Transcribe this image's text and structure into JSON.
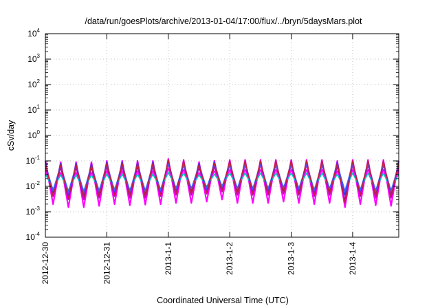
{
  "chart_data": {
    "type": "line",
    "title": "/data/run/goesPlots/archive/2013-01-04/17:00/flux/../bryn/5daysMars.plot",
    "xlabel": "Coordinated Universal Time (UTC)",
    "ylabel": "cSv/day",
    "yscale": "log",
    "ylim": [
      0.0001,
      10000
    ],
    "xlim": [
      "2012-12-30T00:00",
      "2013-01-04T18:00"
    ],
    "grid": true,
    "legend": "none",
    "y_ticks": [
      {
        "base": "10",
        "exp": "-4",
        "value": 0.0001
      },
      {
        "base": "10",
        "exp": "-3",
        "value": 0.001
      },
      {
        "base": "10",
        "exp": "-2",
        "value": 0.01
      },
      {
        "base": "10",
        "exp": "-1",
        "value": 0.1
      },
      {
        "base": "10",
        "exp": "0",
        "value": 1
      },
      {
        "base": "10",
        "exp": "1",
        "value": 10
      },
      {
        "base": "10",
        "exp": "2",
        "value": 100
      },
      {
        "base": "10",
        "exp": "3",
        "value": 1000
      },
      {
        "base": "10",
        "exp": "4",
        "value": 10000
      }
    ],
    "x_ticks": [
      {
        "label": "2012-12-30",
        "date": "2012-12-30T00:00"
      },
      {
        "label": "2012-12-31",
        "date": "2012-12-31T00:00"
      },
      {
        "label": "2013-1-1",
        "date": "2013-01-01T00:00"
      },
      {
        "label": "2013-1-2",
        "date": "2013-01-02T00:00"
      },
      {
        "label": "2013-1-3",
        "date": "2013-01-03T00:00"
      },
      {
        "label": "2013-1-4",
        "date": "2013-01-04T00:00"
      }
    ],
    "series_colors": [
      "#ff00ff",
      "#b000b0",
      "#ff00ff",
      "#00c0c0",
      "#2040ff",
      "#4060ff",
      "#c02040"
    ],
    "series": [
      {
        "x": [
          "2012-12-30T00:00",
          "2012-12-30T03:00",
          "2012-12-30T06:00",
          "2012-12-30T09:00",
          "2012-12-30T12:00",
          "2012-12-30T15:00",
          "2012-12-30T18:00",
          "2012-12-30T21:00",
          "2012-12-31T00:00",
          "2012-12-31T03:00",
          "2012-12-31T06:00",
          "2012-12-31T09:00",
          "2012-12-31T12:00",
          "2012-12-31T15:00",
          "2012-12-31T18:00",
          "2012-12-31T21:00",
          "2013-01-01T00:00",
          "2013-01-01T03:00",
          "2013-01-01T06:00",
          "2013-01-01T09:00",
          "2013-01-01T12:00",
          "2013-01-01T15:00",
          "2013-01-01T18:00",
          "2013-01-01T21:00",
          "2013-01-02T00:00",
          "2013-01-02T03:00",
          "2013-01-02T06:00",
          "2013-01-02T09:00",
          "2013-01-02T12:00",
          "2013-01-02T15:00",
          "2013-01-02T18:00",
          "2013-01-02T21:00",
          "2013-01-03T00:00",
          "2013-01-03T03:00",
          "2013-01-03T06:00",
          "2013-01-03T09:00",
          "2013-01-03T12:00",
          "2013-01-03T15:00",
          "2013-01-03T18:00",
          "2013-01-03T21:00",
          "2013-01-04T00:00",
          "2013-01-04T03:00",
          "2013-01-04T06:00",
          "2013-01-04T09:00",
          "2013-01-04T12:00",
          "2013-01-04T15:00",
          "2013-01-04T18:00"
        ],
        "y": [
          0.1,
          0.002,
          0.09,
          0.0015,
          0.09,
          0.0015,
          0.09,
          0.0017,
          0.1,
          0.002,
          0.1,
          0.0018,
          0.1,
          0.0019,
          0.1,
          0.002,
          0.12,
          0.0022,
          0.11,
          0.0022,
          0.09,
          0.0025,
          0.1,
          0.003,
          0.11,
          0.0022,
          0.11,
          0.0022,
          0.11,
          0.0022,
          0.11,
          0.0025,
          0.11,
          0.0022,
          0.11,
          0.002,
          0.11,
          0.0022,
          0.1,
          0.0015,
          0.11,
          0.002,
          0.11,
          0.0018,
          0.11,
          0.0017,
          0.1
        ]
      },
      {
        "x": [
          "2012-12-30T00:00",
          "2012-12-30T03:00",
          "2012-12-30T06:00",
          "2012-12-30T09:00",
          "2012-12-30T12:00",
          "2012-12-30T15:00",
          "2012-12-30T18:00",
          "2012-12-30T21:00",
          "2012-12-31T00:00",
          "2012-12-31T03:00",
          "2012-12-31T06:00",
          "2012-12-31T09:00",
          "2012-12-31T12:00",
          "2012-12-31T15:00",
          "2012-12-31T18:00",
          "2012-12-31T21:00",
          "2013-01-01T00:00",
          "2013-01-01T03:00",
          "2013-01-01T06:00",
          "2013-01-01T09:00",
          "2013-01-01T12:00",
          "2013-01-01T15:00",
          "2013-01-01T18:00",
          "2013-01-01T21:00",
          "2013-01-02T00:00",
          "2013-01-02T03:00",
          "2013-01-02T06:00",
          "2013-01-02T09:00",
          "2013-01-02T12:00",
          "2013-01-02T15:00",
          "2013-01-02T18:00",
          "2013-01-02T21:00",
          "2013-01-03T00:00",
          "2013-01-03T03:00",
          "2013-01-03T06:00",
          "2013-01-03T09:00",
          "2013-01-03T12:00",
          "2013-01-03T15:00",
          "2013-01-03T18:00",
          "2013-01-03T21:00",
          "2013-01-04T00:00",
          "2013-01-04T03:00",
          "2013-01-04T06:00",
          "2013-01-04T09:00",
          "2013-01-04T12:00",
          "2013-01-04T15:00",
          "2013-01-04T18:00"
        ],
        "y": [
          0.06,
          0.004,
          0.055,
          0.003,
          0.055,
          0.003,
          0.055,
          0.0035,
          0.06,
          0.004,
          0.06,
          0.0035,
          0.06,
          0.0035,
          0.06,
          0.004,
          0.075,
          0.0045,
          0.07,
          0.0045,
          0.055,
          0.005,
          0.06,
          0.006,
          0.07,
          0.0045,
          0.07,
          0.0045,
          0.07,
          0.0045,
          0.07,
          0.005,
          0.07,
          0.0045,
          0.07,
          0.004,
          0.07,
          0.0045,
          0.06,
          0.003,
          0.07,
          0.004,
          0.07,
          0.0035,
          0.07,
          0.0035,
          0.06
        ]
      },
      {
        "x": [
          "2012-12-30T00:00",
          "2012-12-30T03:00",
          "2012-12-30T06:00",
          "2012-12-30T09:00",
          "2012-12-30T12:00",
          "2012-12-30T15:00",
          "2012-12-30T18:00",
          "2012-12-30T21:00",
          "2012-12-31T00:00",
          "2012-12-31T03:00",
          "2012-12-31T06:00",
          "2012-12-31T09:00",
          "2012-12-31T12:00",
          "2012-12-31T15:00",
          "2012-12-31T18:00",
          "2012-12-31T21:00",
          "2013-01-01T00:00",
          "2013-01-01T03:00",
          "2013-01-01T06:00",
          "2013-01-01T09:00",
          "2013-01-01T12:00",
          "2013-01-01T15:00",
          "2013-01-01T18:00",
          "2013-01-01T21:00",
          "2013-01-02T00:00",
          "2013-01-02T03:00",
          "2013-01-02T06:00",
          "2013-01-02T09:00",
          "2013-01-02T12:00",
          "2013-01-02T15:00",
          "2013-01-02T18:00",
          "2013-01-02T21:00",
          "2013-01-03T00:00",
          "2013-01-03T03:00",
          "2013-01-03T06:00",
          "2013-01-03T09:00",
          "2013-01-03T12:00",
          "2013-01-03T15:00",
          "2013-01-03T18:00",
          "2013-01-03T21:00",
          "2013-01-04T00:00",
          "2013-01-04T03:00",
          "2013-01-04T06:00",
          "2013-01-04T09:00",
          "2013-01-04T12:00",
          "2013-01-04T15:00",
          "2013-01-04T18:00"
        ],
        "y": [
          0.04,
          0.006,
          0.035,
          0.005,
          0.035,
          0.005,
          0.035,
          0.0055,
          0.04,
          0.006,
          0.04,
          0.0055,
          0.04,
          0.0055,
          0.04,
          0.006,
          0.05,
          0.007,
          0.045,
          0.007,
          0.035,
          0.008,
          0.04,
          0.009,
          0.045,
          0.007,
          0.045,
          0.007,
          0.045,
          0.007,
          0.045,
          0.008,
          0.045,
          0.007,
          0.045,
          0.006,
          0.045,
          0.007,
          0.04,
          0.005,
          0.045,
          0.006,
          0.045,
          0.0055,
          0.045,
          0.0055,
          0.04
        ]
      },
      {
        "x": [
          "2012-12-30T00:00",
          "2012-12-30T03:00",
          "2012-12-30T06:00",
          "2012-12-30T09:00",
          "2012-12-30T12:00",
          "2012-12-30T15:00",
          "2012-12-30T18:00",
          "2012-12-30T21:00",
          "2012-12-31T00:00",
          "2012-12-31T03:00",
          "2012-12-31T06:00",
          "2012-12-31T09:00",
          "2012-12-31T12:00",
          "2012-12-31T15:00",
          "2012-12-31T18:00",
          "2012-12-31T21:00",
          "2013-01-01T00:00",
          "2013-01-01T03:00",
          "2013-01-01T06:00",
          "2013-01-01T09:00",
          "2013-01-01T12:00",
          "2013-01-01T15:00",
          "2013-01-01T18:00",
          "2013-01-01T21:00",
          "2013-01-02T00:00",
          "2013-01-02T03:00",
          "2013-01-02T06:00",
          "2013-01-02T09:00",
          "2013-01-02T12:00",
          "2013-01-02T15:00",
          "2013-01-02T18:00",
          "2013-01-02T21:00",
          "2013-01-03T00:00",
          "2013-01-03T03:00",
          "2013-01-03T06:00",
          "2013-01-03T09:00",
          "2013-01-03T12:00",
          "2013-01-03T15:00",
          "2013-01-03T18:00",
          "2013-01-03T21:00",
          "2013-01-04T00:00",
          "2013-01-04T03:00",
          "2013-01-04T06:00",
          "2013-01-04T09:00",
          "2013-01-04T12:00",
          "2013-01-04T15:00",
          "2013-01-04T18:00"
        ],
        "y": [
          0.03,
          0.008,
          0.028,
          0.007,
          0.028,
          0.007,
          0.028,
          0.0075,
          0.03,
          0.008,
          0.03,
          0.0075,
          0.03,
          0.0075,
          0.03,
          0.008,
          0.035,
          0.009,
          0.033,
          0.009,
          0.028,
          0.01,
          0.03,
          0.011,
          0.033,
          0.009,
          0.033,
          0.009,
          0.033,
          0.009,
          0.033,
          0.01,
          0.033,
          0.009,
          0.033,
          0.008,
          0.033,
          0.009,
          0.03,
          0.007,
          0.033,
          0.008,
          0.033,
          0.0075,
          0.033,
          0.0075,
          0.03
        ]
      },
      {
        "x": [
          "2012-12-30T00:00",
          "2012-12-30T03:00",
          "2012-12-30T06:00",
          "2012-12-30T09:00",
          "2012-12-30T12:00",
          "2012-12-30T15:00",
          "2012-12-30T18:00",
          "2012-12-30T21:00",
          "2012-12-31T00:00",
          "2012-12-31T03:00",
          "2012-12-31T06:00",
          "2012-12-31T09:00",
          "2012-12-31T12:00",
          "2012-12-31T15:00",
          "2012-12-31T18:00",
          "2012-12-31T21:00",
          "2013-01-01T00:00",
          "2013-01-01T03:00",
          "2013-01-01T06:00",
          "2013-01-01T09:00",
          "2013-01-01T12:00",
          "2013-01-01T15:00",
          "2013-01-01T18:00",
          "2013-01-01T21:00",
          "2013-01-02T00:00",
          "2013-01-02T03:00",
          "2013-01-02T06:00",
          "2013-01-02T09:00",
          "2013-01-02T12:00",
          "2013-01-02T15:00",
          "2013-01-02T18:00",
          "2013-01-02T21:00",
          "2013-01-03T00:00",
          "2013-01-03T03:00",
          "2013-01-03T06:00",
          "2013-01-03T09:00",
          "2013-01-03T12:00",
          "2013-01-03T15:00",
          "2013-01-03T18:00",
          "2013-01-03T21:00",
          "2013-01-04T00:00",
          "2013-01-04T03:00",
          "2013-01-04T06:00",
          "2013-01-04T09:00",
          "2013-01-04T12:00",
          "2013-01-04T15:00",
          "2013-01-04T18:00"
        ],
        "y": [
          0.09,
          0.005,
          0.08,
          0.004,
          0.08,
          0.004,
          0.08,
          0.0045,
          0.09,
          0.005,
          0.09,
          0.0045,
          0.09,
          0.0045,
          0.09,
          0.005,
          0.1,
          0.006,
          0.095,
          0.006,
          0.08,
          0.0065,
          0.09,
          0.0075,
          0.095,
          0.006,
          0.095,
          0.006,
          0.095,
          0.006,
          0.095,
          0.0065,
          0.095,
          0.006,
          0.095,
          0.005,
          0.095,
          0.006,
          0.09,
          0.0045,
          0.095,
          0.005,
          0.095,
          0.0045,
          0.095,
          0.0045,
          0.09
        ]
      },
      {
        "x": [
          "2012-12-30T00:00",
          "2012-12-30T03:00",
          "2012-12-30T06:00",
          "2012-12-30T09:00",
          "2012-12-30T12:00",
          "2012-12-30T15:00",
          "2012-12-30T18:00",
          "2012-12-30T21:00",
          "2012-12-31T00:00",
          "2012-12-31T03:00",
          "2012-12-31T06:00",
          "2012-12-31T09:00",
          "2012-12-31T12:00",
          "2012-12-31T15:00",
          "2012-12-31T18:00",
          "2012-12-31T21:00",
          "2013-01-01T00:00",
          "2013-01-01T03:00",
          "2013-01-01T06:00",
          "2013-01-01T09:00",
          "2013-01-01T12:00",
          "2013-01-01T15:00",
          "2013-01-01T18:00",
          "2013-01-01T21:00",
          "2013-01-02T00:00",
          "2013-01-02T03:00",
          "2013-01-02T06:00",
          "2013-01-02T09:00",
          "2013-01-02T12:00",
          "2013-01-02T15:00",
          "2013-01-02T18:00",
          "2013-01-02T21:00",
          "2013-01-03T00:00",
          "2013-01-03T03:00",
          "2013-01-03T06:00",
          "2013-01-03T09:00",
          "2013-01-03T12:00",
          "2013-01-03T15:00",
          "2013-01-03T18:00",
          "2013-01-03T21:00",
          "2013-01-04T00:00",
          "2013-01-04T03:00",
          "2013-01-04T06:00",
          "2013-01-04T09:00",
          "2013-01-04T12:00",
          "2013-01-04T15:00",
          "2013-01-04T18:00"
        ],
        "y": [
          0.07,
          0.007,
          0.065,
          0.006,
          0.065,
          0.006,
          0.065,
          0.0065,
          0.07,
          0.007,
          0.07,
          0.0065,
          0.07,
          0.0065,
          0.07,
          0.007,
          0.08,
          0.008,
          0.075,
          0.008,
          0.065,
          0.0085,
          0.07,
          0.0095,
          0.075,
          0.008,
          0.075,
          0.008,
          0.075,
          0.008,
          0.075,
          0.0085,
          0.075,
          0.008,
          0.075,
          0.007,
          0.075,
          0.008,
          0.07,
          0.0065,
          0.075,
          0.007,
          0.075,
          0.0065,
          0.075,
          0.0065,
          0.07
        ]
      },
      {
        "x": [
          "2012-12-30T00:00",
          "2012-12-30T03:00",
          "2012-12-30T06:00",
          "2012-12-30T09:00",
          "2012-12-30T12:00",
          "2012-12-30T15:00",
          "2012-12-30T18:00",
          "2012-12-30T21:00",
          "2012-12-31T00:00",
          "2012-12-31T03:00",
          "2012-12-31T06:00",
          "2012-12-31T09:00",
          "2012-12-31T12:00",
          "2012-12-31T15:00",
          "2012-12-31T18:00",
          "2012-12-31T21:00",
          "2013-01-01T00:00",
          "2013-01-01T03:00",
          "2013-01-01T06:00",
          "2013-01-01T09:00",
          "2013-01-01T12:00",
          "2013-01-01T15:00",
          "2013-01-01T18:00",
          "2013-01-01T21:00",
          "2013-01-02T00:00",
          "2013-01-02T03:00",
          "2013-01-02T06:00",
          "2013-01-02T09:00",
          "2013-01-02T12:00",
          "2013-01-02T15:00",
          "2013-01-02T18:00",
          "2013-01-02T21:00",
          "2013-01-03T00:00",
          "2013-01-03T03:00",
          "2013-01-03T06:00",
          "2013-01-03T09:00",
          "2013-01-03T12:00",
          "2013-01-03T15:00",
          "2013-01-03T18:00",
          "2013-01-03T21:00",
          "2013-01-04T00:00",
          "2013-01-04T03:00",
          "2013-01-04T06:00",
          "2013-01-04T09:00",
          "2013-01-04T12:00",
          "2013-01-04T15:00",
          "2013-01-04T18:00"
        ],
        "y": [
          0.08,
          0.004,
          0.07,
          0.0035,
          0.07,
          0.0035,
          0.07,
          0.004,
          0.08,
          0.0045,
          0.08,
          0.004,
          0.08,
          0.004,
          0.08,
          0.0045,
          0.11,
          0.005,
          0.1,
          0.005,
          0.07,
          0.0055,
          0.08,
          0.0065,
          0.1,
          0.005,
          0.1,
          0.005,
          0.1,
          0.005,
          0.1,
          0.0055,
          0.1,
          0.005,
          0.1,
          0.0045,
          0.1,
          0.005,
          0.08,
          0.0022,
          0.1,
          0.0045,
          0.1,
          0.004,
          0.1,
          0.004,
          0.08
        ]
      }
    ]
  }
}
